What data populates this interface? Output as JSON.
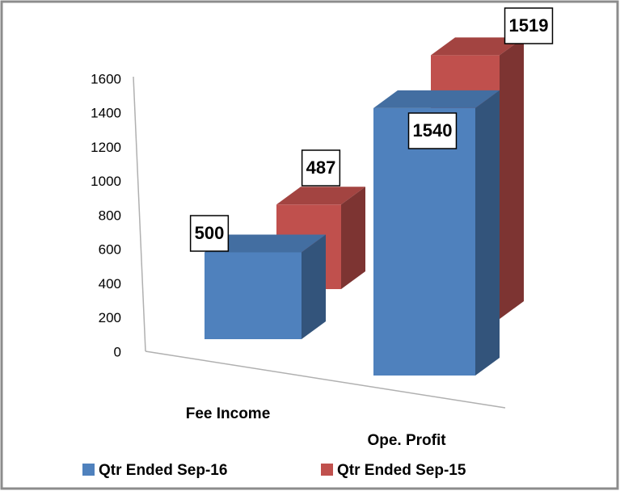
{
  "chart_data": {
    "type": "bar3d",
    "categories": [
      "Fee Income",
      "Ope. Profit"
    ],
    "series": [
      {
        "name": "Qtr Ended Sep-16",
        "color": "#4f81bd",
        "values": [
          500,
          1540
        ]
      },
      {
        "name": "Qtr Ended Sep-15",
        "color": "#c0504d",
        "values": [
          487,
          1519
        ]
      }
    ],
    "ylim": [
      0,
      1600
    ],
    "yticks": [
      0,
      200,
      400,
      600,
      800,
      1000,
      1200,
      1400,
      1600
    ]
  }
}
